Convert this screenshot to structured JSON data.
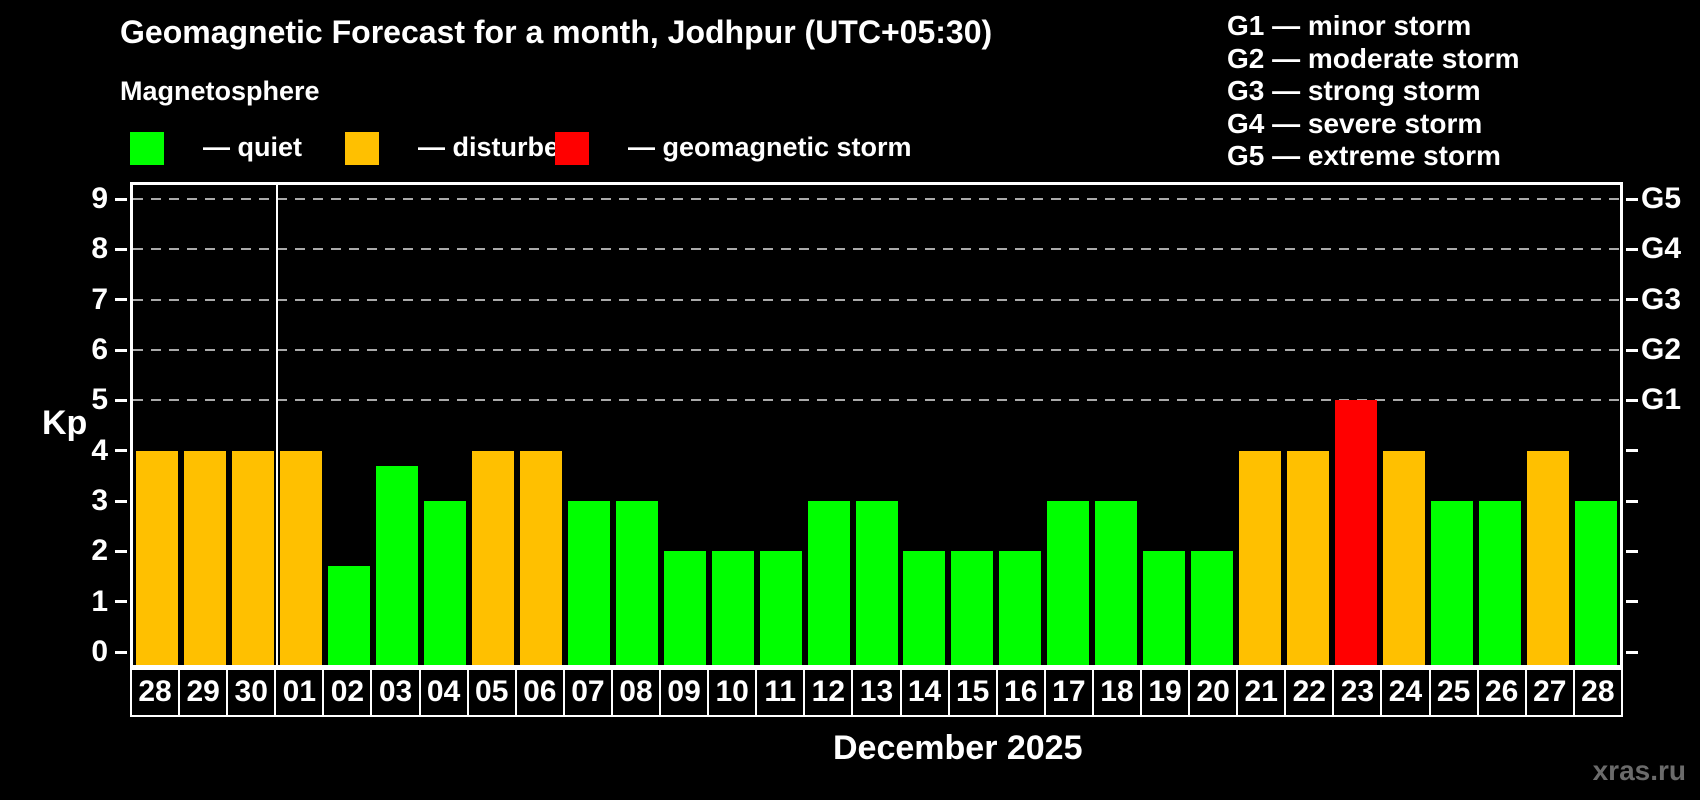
{
  "title": "Geomagnetic Forecast for a month, Jodhpur (UTC+05:30)",
  "subtitle": "Magnetosphere",
  "legend": {
    "items": [
      {
        "name": "quiet",
        "label": "— quiet",
        "color": "#00ff00"
      },
      {
        "name": "disturbed",
        "label": "— disturbed",
        "color": "#ffc000"
      },
      {
        "name": "geomagnetic-storm",
        "label": "— geomagnetic storm",
        "color": "#ff0000"
      }
    ]
  },
  "storm_scale_legend": {
    "items": [
      {
        "label": "G1 — minor storm"
      },
      {
        "label": "G2 — moderate storm"
      },
      {
        "label": "G3 — strong storm"
      },
      {
        "label": "G4 — severe storm"
      },
      {
        "label": "G5 — extreme storm"
      }
    ]
  },
  "watermark": "xras.ru",
  "chart_data": {
    "type": "bar",
    "title": "Geomagnetic Forecast for a month, Jodhpur (UTC+05:30)",
    "xlabel": "December 2025",
    "ylabel": "Kp",
    "ylim": [
      0,
      9
    ],
    "yticks": [
      0,
      1,
      2,
      3,
      4,
      5,
      6,
      7,
      8,
      9
    ],
    "grid": "dashed horizontal gridlines at Kp 5-9 (storm levels)",
    "grid_levels": [
      5,
      6,
      7,
      8,
      9
    ],
    "right_axis": [
      {
        "value": 5,
        "label": "G1"
      },
      {
        "value": 6,
        "label": "G2"
      },
      {
        "value": 7,
        "label": "G3"
      },
      {
        "value": 8,
        "label": "G4"
      },
      {
        "value": 9,
        "label": "G5"
      }
    ],
    "month_separator_after_index": 2,
    "categories": [
      "28",
      "29",
      "30",
      "01",
      "02",
      "03",
      "04",
      "05",
      "06",
      "07",
      "08",
      "09",
      "10",
      "11",
      "12",
      "13",
      "14",
      "15",
      "16",
      "17",
      "18",
      "19",
      "20",
      "21",
      "22",
      "23",
      "24",
      "25",
      "26",
      "27",
      "28"
    ],
    "values": [
      4,
      4,
      4,
      4,
      1.7,
      3.7,
      3,
      4,
      4,
      3,
      3,
      2,
      2,
      2,
      3,
      3,
      2,
      2,
      2,
      3,
      3,
      2,
      2,
      4,
      4,
      5,
      4,
      3,
      3,
      4,
      3
    ],
    "color_rule": {
      "quiet_max_exclusive": 4,
      "disturbed_max_exclusive": 5,
      "storm_min": 5
    },
    "legend_position": "top-left"
  }
}
